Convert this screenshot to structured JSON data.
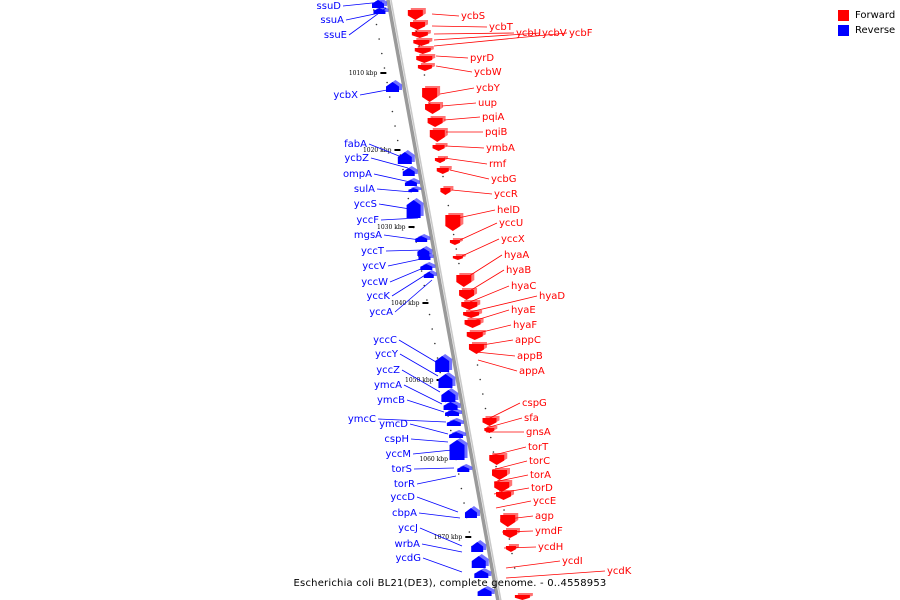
{
  "title": "Escherichia coli BL21(DE3), complete genome. - 0..4558953",
  "legend": [
    {
      "label": "Forward",
      "color": "#ff0000"
    },
    {
      "label": "Reverse",
      "color": "#0000ff"
    }
  ],
  "colors": {
    "forward": "#ff0000",
    "reverse": "#0000ff",
    "backbone": "#9a9a9a",
    "ticks": "#000000"
  },
  "position_ticks": [
    "1010 kbp",
    "1020 kbp",
    "1030 kbp",
    "1040 kbp",
    "1050 kbp",
    "1060 kbp",
    "1070 kbp"
  ],
  "forward_genes": [
    "ycbS",
    "ycbT",
    "ycbU",
    "ycbV",
    "ycbF",
    "pyrD",
    "ycbW",
    "ycbY",
    "uup",
    "pqiA",
    "pqiB",
    "ymbA",
    "rmf",
    "ycbG",
    "yccR",
    "helD",
    "yccU",
    "yccX",
    "hyaA",
    "hyaB",
    "hyaC",
    "hyaD",
    "hyaE",
    "hyaF",
    "appC",
    "appB",
    "appA",
    "cspG",
    "sfa",
    "gnsA",
    "torT",
    "torC",
    "torA",
    "torD",
    "yccE",
    "agp",
    "ymdF",
    "ycdH",
    "ycdI",
    "ycdK"
  ],
  "reverse_genes": [
    "ssuD",
    "ssuA",
    "ssuE",
    "ycbX",
    "fabA",
    "ycbZ",
    "ompA",
    "sulA",
    "yccS",
    "yccF",
    "mgsA",
    "yccT",
    "yccV",
    "yccW",
    "yccK",
    "yccA",
    "yccC",
    "yccY",
    "yccZ",
    "ymcA",
    "ymcB",
    "ymcC",
    "ymcD",
    "cspH",
    "yccM",
    "torS",
    "torR",
    "yccD",
    "cbpA",
    "yccJ",
    "wrbA",
    "ycdG"
  ]
}
